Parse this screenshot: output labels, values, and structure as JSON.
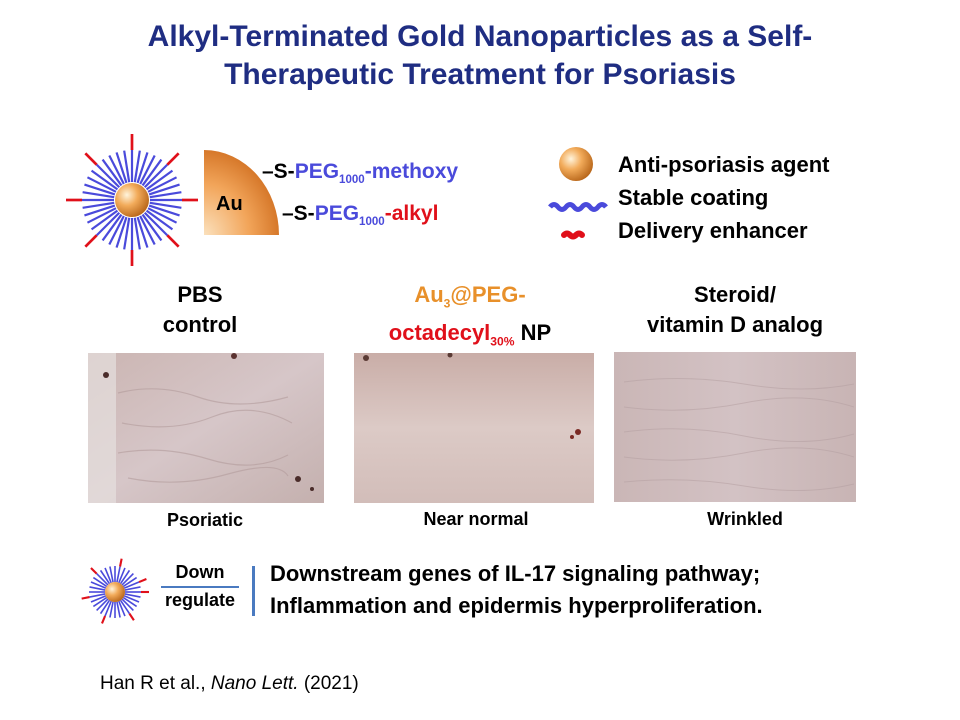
{
  "title": {
    "line1": "Alkyl-Terminated Gold Nanoparticles as a Self-",
    "line2": "Therapeutic Treatment for Psoriasis"
  },
  "structure": {
    "au": "Au",
    "lig1_prefix": "–S-",
    "lig1_peg": "PEG",
    "lig1_sub": "1000",
    "lig1_end": "-methoxy",
    "lig2_prefix": "–S-",
    "lig2_peg": "PEG",
    "lig2_sub": "1000",
    "lig2_dash": "-",
    "lig2_end": "alkyl"
  },
  "legend": {
    "item1": "Anti-psoriasis agent",
    "item2": "Stable coating",
    "item3": "Delivery enhancer"
  },
  "columns": {
    "c1_line1": "PBS",
    "c1_line2": "control",
    "c2_au": "Au",
    "c2_au_sub": "3",
    "c2_rest": "@PEG-",
    "c2_line2": "octadecyl",
    "c2_sub": "30%",
    "c2_np": " NP",
    "c3_line1": "Steroid/",
    "c3_line2": "vitamin D analog"
  },
  "captions": {
    "c1": "Psoriatic",
    "c2": "Near normal",
    "c3": "Wrinkled"
  },
  "bottom": {
    "down": "Down",
    "regulate": "regulate",
    "line1": "Downstream genes of IL-17 signaling pathway;",
    "line2": "Inflammation and epidermis hyperproliferation."
  },
  "citation": {
    "authors": "Han R et al., ",
    "journal": "Nano Lett.",
    "year": " (2021)"
  },
  "colors": {
    "title": "#1f2d82",
    "peg": "#4a4adb",
    "alkyl": "#e0101a",
    "gold": "#e8902a"
  }
}
